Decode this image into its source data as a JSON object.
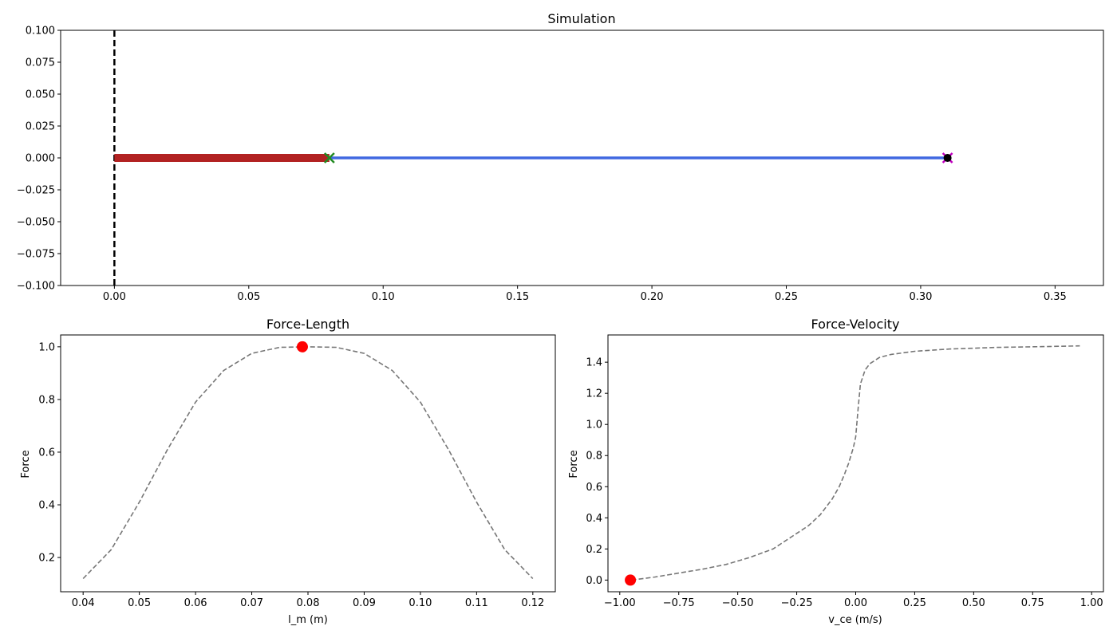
{
  "chart_data": [
    {
      "type": "line",
      "title": "Simulation",
      "xlabel": "",
      "ylabel": "",
      "xlim": [
        -0.02,
        0.368
      ],
      "ylim": [
        -0.1,
        0.1
      ],
      "xticks": [
        0.0,
        0.05,
        0.1,
        0.15,
        0.2,
        0.25,
        0.3,
        0.35
      ],
      "xtick_labels": [
        "0.00",
        "0.05",
        "0.10",
        "0.15",
        "0.20",
        "0.25",
        "0.30",
        "0.35"
      ],
      "yticks": [
        0.1,
        0.075,
        0.05,
        0.025,
        0.0,
        -0.025,
        -0.05,
        -0.075,
        -0.1
      ],
      "ytick_labels": [
        "0.100",
        "0.075",
        "0.050",
        "0.025",
        "0.000",
        "−0.025",
        "−0.050",
        "−0.075",
        "−0.100"
      ],
      "grid": false,
      "wall_x": 0.0,
      "segments": [
        {
          "x": [
            0.0,
            0.08
          ],
          "y": [
            0.0,
            0.0
          ],
          "color": "#b22222"
        },
        {
          "x": [
            0.08,
            0.31
          ],
          "y": [
            0.0,
            0.0
          ],
          "color": "#4169e1"
        }
      ],
      "markers": [
        {
          "x": 0.08,
          "y": 0.0,
          "shape": "x",
          "color": "#228b22"
        },
        {
          "x": 0.31,
          "y": 0.0,
          "shape": "x",
          "color": "#c000c0"
        },
        {
          "x": 0.31,
          "y": 0.0,
          "shape": "o",
          "color": "#000000"
        }
      ]
    },
    {
      "type": "line",
      "title": "Force-Length",
      "xlabel": "l_m (m)",
      "ylabel": "Force",
      "xlim": [
        0.036,
        0.124
      ],
      "ylim": [
        0.07,
        1.045
      ],
      "xticks": [
        0.04,
        0.05,
        0.06,
        0.07,
        0.08,
        0.09,
        0.1,
        0.11,
        0.12
      ],
      "xtick_labels": [
        "0.04",
        "0.05",
        "0.06",
        "0.07",
        "0.08",
        "0.09",
        "0.10",
        "0.11",
        "0.12"
      ],
      "yticks": [
        0.2,
        0.4,
        0.6,
        0.8,
        1.0
      ],
      "ytick_labels": [
        "0.2",
        "0.4",
        "0.6",
        "0.8",
        "1.0"
      ],
      "grid": false,
      "series": [
        {
          "x": [
            0.04,
            0.045,
            0.05,
            0.055,
            0.06,
            0.065,
            0.07,
            0.075,
            0.08,
            0.085,
            0.09,
            0.095,
            0.1,
            0.105,
            0.11,
            0.115,
            0.12
          ],
          "y": [
            0.12,
            0.23,
            0.41,
            0.61,
            0.79,
            0.91,
            0.975,
            0.998,
            1.0,
            0.998,
            0.975,
            0.91,
            0.79,
            0.61,
            0.41,
            0.23,
            0.12
          ],
          "color": "#777777",
          "style": "dashed"
        }
      ],
      "point": {
        "x": 0.079,
        "y": 1.0,
        "color": "#ff0000"
      }
    },
    {
      "type": "line",
      "title": "Force-Velocity",
      "xlabel": "v_ce (m/s)",
      "ylabel": "Force",
      "xlim": [
        -1.05,
        1.05
      ],
      "ylim": [
        -0.075,
        1.575
      ],
      "xticks": [
        -1.0,
        -0.75,
        -0.5,
        -0.25,
        0.0,
        0.25,
        0.5,
        0.75,
        1.0
      ],
      "xtick_labels": [
        "−1.00",
        "−0.75",
        "−0.50",
        "−0.25",
        "0.00",
        "0.25",
        "0.50",
        "0.75",
        "1.00"
      ],
      "yticks": [
        0.0,
        0.2,
        0.4,
        0.6,
        0.8,
        1.0,
        1.2,
        1.4
      ],
      "ytick_labels": [
        "0.0",
        "0.2",
        "0.4",
        "0.6",
        "0.8",
        "1.0",
        "1.2",
        "1.4"
      ],
      "grid": false,
      "series": [
        {
          "x": [
            -0.95,
            -0.85,
            -0.75,
            -0.65,
            -0.55,
            -0.45,
            -0.35,
            -0.25,
            -0.2,
            -0.15,
            -0.1,
            -0.07,
            -0.05,
            -0.03,
            -0.01,
            0.0,
            0.01,
            0.02,
            0.04,
            0.06,
            0.1,
            0.15,
            0.25,
            0.4,
            0.6,
            0.8,
            0.95
          ],
          "y": [
            0.0,
            0.02,
            0.045,
            0.07,
            0.1,
            0.145,
            0.2,
            0.3,
            0.35,
            0.42,
            0.52,
            0.6,
            0.67,
            0.75,
            0.85,
            0.92,
            1.1,
            1.26,
            1.35,
            1.39,
            1.43,
            1.45,
            1.47,
            1.485,
            1.495,
            1.5,
            1.505
          ],
          "color": "#777777",
          "style": "dashed"
        }
      ],
      "point": {
        "x": -0.955,
        "y": 0.0,
        "color": "#ff0000"
      }
    }
  ]
}
